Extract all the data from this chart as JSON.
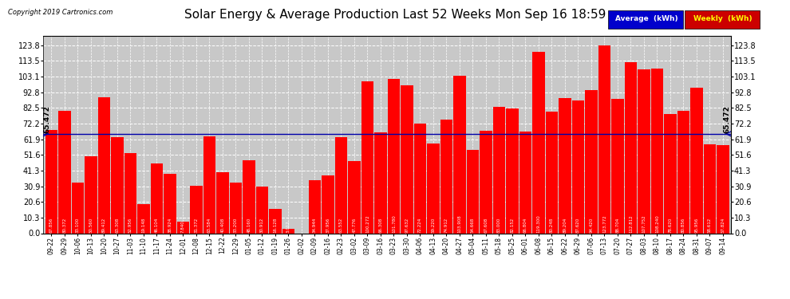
{
  "title": "Solar Energy & Average Production Last 52 Weeks Mon Sep 16 18:59",
  "copyright": "Copyright 2019 Cartronics.com",
  "average_line": 65.472,
  "average_label": "65.472",
  "bar_color": "#FF0000",
  "average_line_color": "#0000AA",
  "background_color": "#FFFFFF",
  "plot_bg_color": "#C8C8C8",
  "ylim_max": 130,
  "yticks": [
    0.0,
    10.3,
    20.6,
    30.9,
    41.3,
    51.6,
    61.9,
    72.2,
    82.5,
    92.8,
    103.1,
    113.5,
    123.8
  ],
  "legend_avg_bg": "#0000CC",
  "legend_weekly_bg": "#CC0000",
  "categories": [
    "09-22",
    "09-29",
    "10-06",
    "10-13",
    "10-20",
    "10-27",
    "11-03",
    "11-10",
    "11-17",
    "11-24",
    "12-01",
    "12-08",
    "12-15",
    "12-22",
    "12-29",
    "01-05",
    "01-12",
    "01-19",
    "01-26",
    "02-02",
    "02-09",
    "02-16",
    "02-23",
    "03-02",
    "03-09",
    "03-16",
    "03-23",
    "03-30",
    "04-06",
    "04-13",
    "04-20",
    "04-27",
    "05-04",
    "05-11",
    "05-18",
    "05-25",
    "06-01",
    "06-08",
    "06-15",
    "06-22",
    "06-29",
    "07-06",
    "07-13",
    "07-20",
    "07-27",
    "08-03",
    "08-10",
    "08-17",
    "08-24",
    "08-31",
    "09-07",
    "09-14"
  ],
  "values": [
    67.856,
    80.372,
    33.1,
    50.56,
    89.412,
    63.308,
    52.956,
    19.148,
    46.104,
    38.924,
    7.84,
    31.372,
    63.584,
    40.408,
    33.2,
    48.16,
    30.912,
    16.128,
    3.012,
    0.0,
    34.944,
    37.956,
    63.552,
    47.776,
    100.272,
    66.308,
    101.78,
    97.632,
    72.224,
    59.22,
    74.912,
    103.908,
    54.668,
    67.608,
    83.0,
    82.152,
    66.804,
    119.3,
    80.248,
    89.204,
    87.62,
    94.42,
    123.772,
    88.704,
    112.812,
    107.752,
    108.24,
    78.62,
    80.856,
    95.956,
    58.612,
    57.824
  ]
}
